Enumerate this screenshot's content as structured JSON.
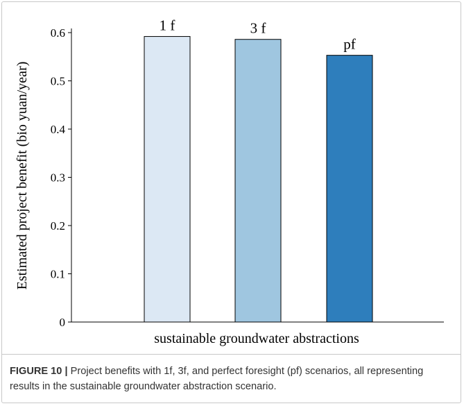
{
  "chart_data": {
    "type": "bar",
    "categories": [
      "1 f",
      "3 f",
      "pf"
    ],
    "values": [
      0.592,
      0.586,
      0.553
    ],
    "bar_colors": [
      "#dce8f4",
      "#9fc6e0",
      "#2e7ebc"
    ],
    "bar_stroke": "#000000",
    "title": "",
    "xlabel": "sustainable groundwater abstractions",
    "ylabel": "Estimated project benefit (bio yuan/year)",
    "ylim": [
      0,
      0.6
    ],
    "yticks": [
      0,
      0.1,
      0.2,
      0.3,
      0.4,
      0.5,
      0.6
    ],
    "ytick_labels": [
      "0",
      "0.1",
      "0.2",
      "0.3",
      "0.4",
      "0.5",
      "0.6"
    ],
    "grid": false,
    "data_labels": [
      "1 f",
      "3 f",
      "pf"
    ]
  },
  "caption": {
    "label": "FIGURE 10 |",
    "text": "Project benefits with 1f, 3f, and perfect foresight (pf) scenarios, all representing results in the sustainable groundwater abstraction scenario."
  }
}
